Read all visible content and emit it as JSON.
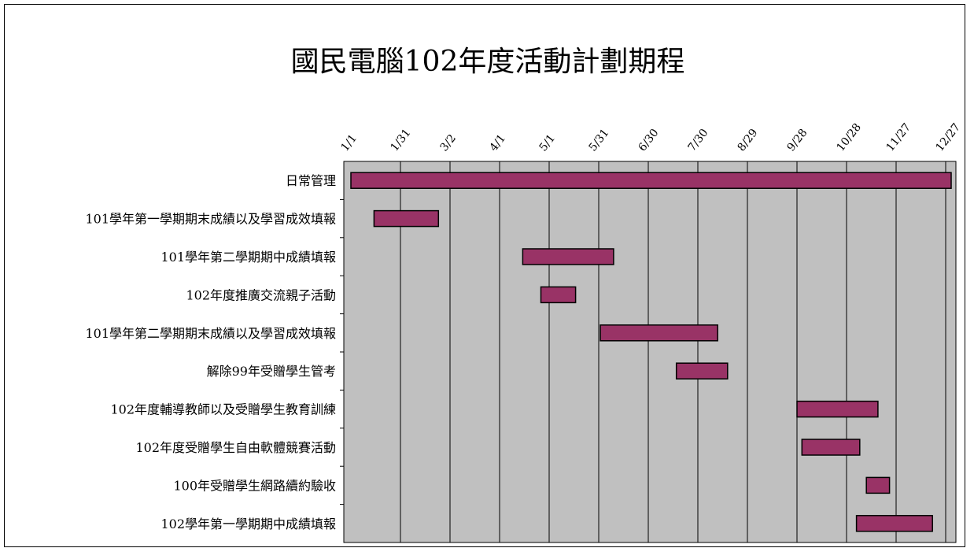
{
  "chart_data": {
    "type": "gantt",
    "title": "國民電腦102年度活動計劃期程",
    "x_tick_labels": [
      "1/1",
      "1/31",
      "3/2",
      "4/1",
      "5/1",
      "5/31",
      "6/30",
      "7/30",
      "8/29",
      "9/28",
      "10/28",
      "11/27",
      "12/27"
    ],
    "xlim": [
      "2013-01-01",
      "2013-12-27"
    ],
    "grid": true,
    "legend": "none",
    "tasks": [
      {
        "name": "日常管理",
        "start": "2013-01-01",
        "end": "2013-12-31"
      },
      {
        "name": "101學年第一學期期末成績以及學習成效填報",
        "start": "2013-01-15",
        "end": "2013-02-23"
      },
      {
        "name": "101學年第二學期期中成績填報",
        "start": "2013-04-15",
        "end": "2013-06-09"
      },
      {
        "name": "102年度推廣交流親子活動",
        "start": "2013-04-26",
        "end": "2013-05-17"
      },
      {
        "name": "101學年第二學期期末成績以及學習成效填報",
        "start": "2013-06-01",
        "end": "2013-08-11"
      },
      {
        "name": "解除99年受贈學生管考",
        "start": "2013-07-17",
        "end": "2013-08-17"
      },
      {
        "name": "102年度輔導教師以及受贈學生教育訓練",
        "start": "2013-09-28",
        "end": "2013-11-16"
      },
      {
        "name": "102年度受贈學生自由軟體競賽活動",
        "start": "2013-10-01",
        "end": "2013-11-05"
      },
      {
        "name": "100年受贈學生網路續約驗收",
        "start": "2013-11-09",
        "end": "2013-11-23"
      },
      {
        "name": "102學年第一學期期中成績填報",
        "start": "2013-11-03",
        "end": "2013-12-19"
      }
    ],
    "colors": {
      "bar": "#993366",
      "plot_bg": "#c0c0c0",
      "grid": "#000000"
    }
  }
}
